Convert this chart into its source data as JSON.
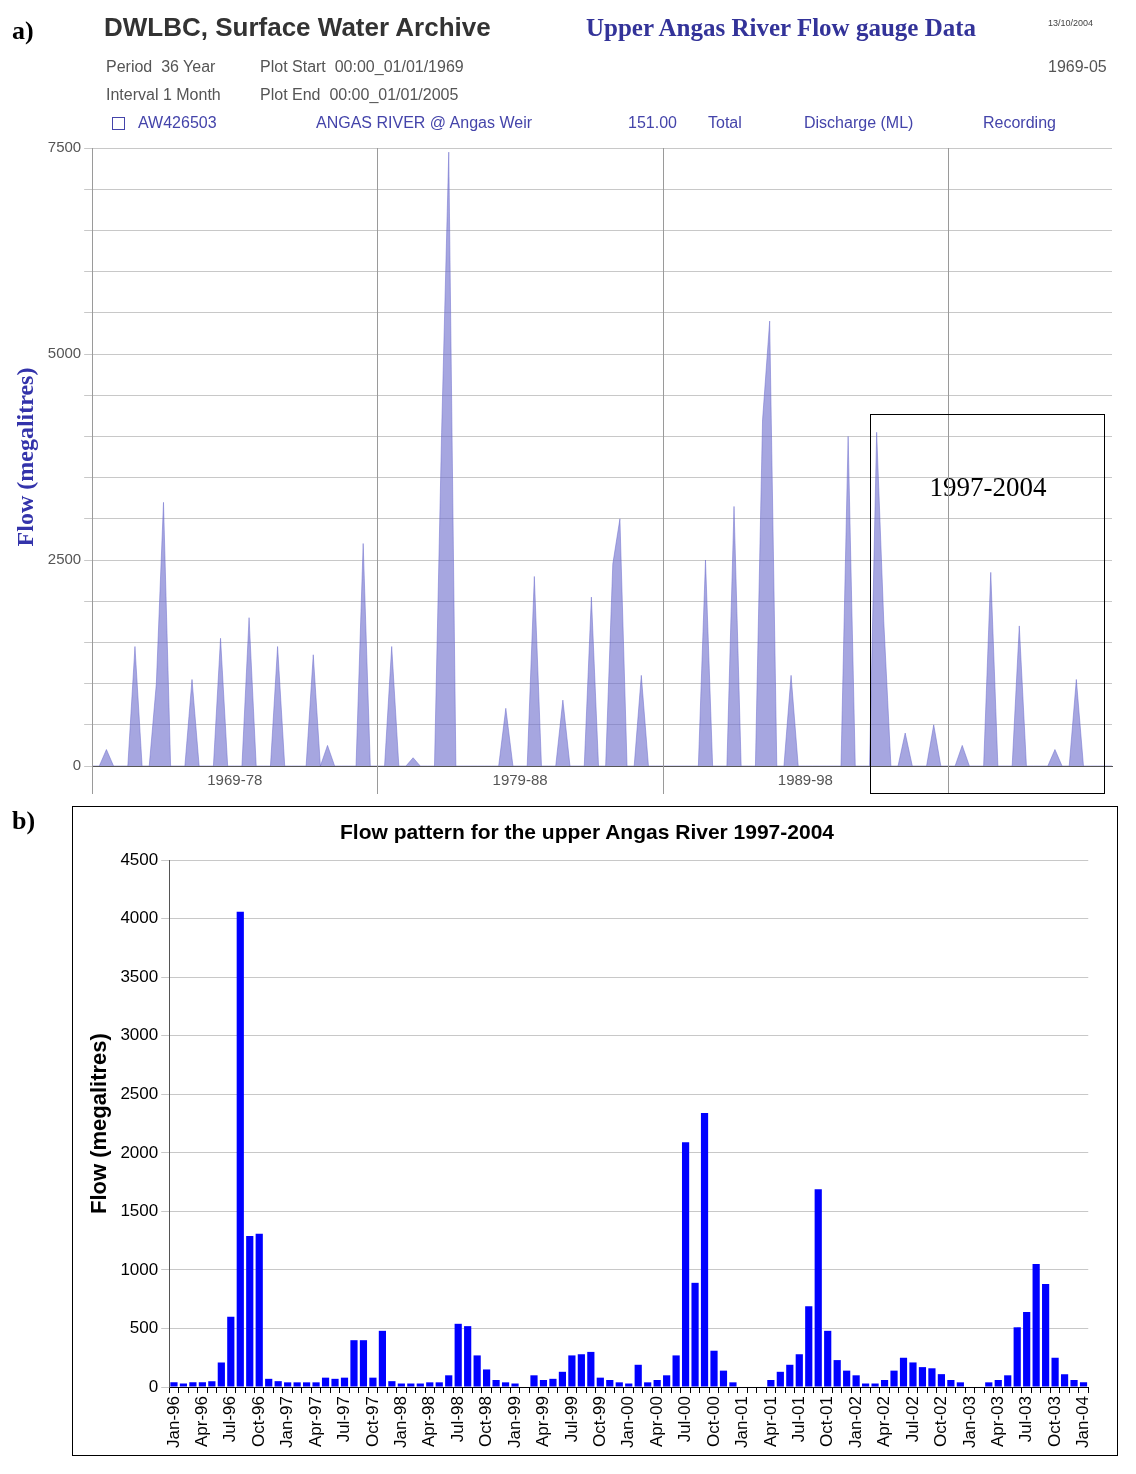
{
  "chart_data": [
    {
      "type": "area",
      "title": "DWLBC, Surface Water Archive",
      "subtitle": "Upper Angas River Flow gauge Data",
      "ylabel": "Flow (megalitres)",
      "annotations": [
        "a)",
        "13/10/2004",
        "Period  36 Year",
        "Plot Start  00:00_01/01/1969",
        "1969-05",
        "Interval 1 Month",
        "Plot End  00:00_01/01/2005",
        "AW426503",
        "ANGAS RIVER @ Angas Weir",
        "151.00",
        "Total",
        "Discharge (ML)",
        "Recording",
        "1997-2004"
      ],
      "categories": [
        null,
        null,
        null,
        null,
        null,
        null,
        null,
        null,
        null,
        null,
        null,
        null,
        null,
        null,
        null,
        null,
        null,
        null,
        null,
        null,
        "1969-78",
        null,
        null,
        null,
        null,
        null,
        null,
        null,
        null,
        null,
        null,
        null,
        null,
        null,
        null,
        null,
        null,
        null,
        null,
        null,
        null,
        null,
        null,
        null,
        null,
        null,
        null,
        null,
        null,
        null,
        null,
        null,
        null,
        null,
        null,
        null,
        null,
        null,
        null,
        null,
        "1979-88",
        null,
        null,
        null,
        null,
        null,
        null,
        null,
        null,
        null,
        null,
        null,
        null,
        null,
        null,
        null,
        null,
        null,
        null,
        null,
        null,
        null,
        null,
        null,
        null,
        null,
        null,
        null,
        null,
        null,
        null,
        null,
        null,
        null,
        null,
        null,
        null,
        null,
        null,
        null,
        "1989-98",
        null,
        null,
        null,
        null,
        null,
        null,
        null,
        null,
        null,
        null,
        null,
        null,
        null,
        null,
        null,
        null,
        null,
        null,
        null,
        null,
        null,
        null,
        null,
        null,
        null,
        null,
        null,
        null,
        null,
        null,
        null,
        null,
        null,
        null,
        null,
        null,
        null,
        null,
        null,
        null,
        null,
        null,
        null
      ],
      "series": [
        {
          "color": "#6a6acc",
          "values": [
            0,
            0,
            200,
            0,
            0,
            0,
            1450,
            0,
            0,
            1000,
            3200,
            0,
            0,
            0,
            1050,
            0,
            0,
            0,
            1550,
            0,
            0,
            0,
            1800,
            0,
            0,
            0,
            1450,
            0,
            0,
            0,
            0,
            1350,
            0,
            250,
            0,
            0,
            0,
            0,
            2700,
            0,
            0,
            0,
            1450,
            0,
            0,
            100,
            0,
            0,
            0,
            4050,
            7450,
            0,
            0,
            0,
            0,
            0,
            0,
            0,
            700,
            0,
            0,
            0,
            2300,
            0,
            0,
            0,
            800,
            0,
            0,
            0,
            2050,
            0,
            0,
            2450,
            3000,
            0,
            0,
            1100,
            0,
            0,
            0,
            0,
            0,
            0,
            0,
            0,
            2500,
            0,
            0,
            0,
            3150,
            0,
            0,
            0,
            4200,
            5400,
            0,
            0,
            1100,
            0,
            0,
            0,
            0,
            0,
            0,
            0,
            4000,
            0,
            0,
            0,
            4050,
            1750,
            0,
            0,
            400,
            0,
            0,
            0,
            500,
            0,
            0,
            0,
            250,
            0,
            0,
            0,
            2350,
            0,
            0,
            0,
            1700,
            0,
            0,
            0,
            0,
            200,
            0,
            0,
            1050,
            0,
            0,
            0,
            0,
            0
          ]
        }
      ],
      "ylim": [
        0,
        7500
      ],
      "yticks": [
        0,
        {
          "value": 500,
          "label": null
        },
        {
          "value": 1000,
          "label": null
        },
        {
          "value": 1500,
          "label": null
        },
        {
          "value": 2000,
          "label": null
        },
        2500,
        {
          "value": 3000,
          "label": null
        },
        {
          "value": 3500,
          "label": null
        },
        {
          "value": 4000,
          "label": null
        },
        {
          "value": 4500,
          "label": null
        },
        5000,
        {
          "value": 5500,
          "label": null
        },
        {
          "value": 6000,
          "label": null
        },
        {
          "value": 6500,
          "label": null
        },
        {
          "value": 7000,
          "label": null
        },
        7500
      ],
      "grid": true
    },
    {
      "type": "bar",
      "title": "Flow pattern for the upper Angas River 1997-2004",
      "ylabel": "Flow (megalitres)",
      "annotations": [
        "b)"
      ],
      "categories": [
        "Jan-96",
        null,
        null,
        "Apr-96",
        null,
        null,
        "Jul-96",
        null,
        null,
        "Oct-96",
        null,
        null,
        "Jan-97",
        null,
        null,
        "Apr-97",
        null,
        null,
        "Jul-97",
        null,
        null,
        "Oct-97",
        null,
        null,
        "Jan-98",
        null,
        null,
        "Apr-98",
        null,
        null,
        "Jul-98",
        null,
        null,
        "Oct-98",
        null,
        null,
        "Jan-99",
        null,
        null,
        "Apr-99",
        null,
        null,
        "Jul-99",
        null,
        null,
        "Oct-99",
        null,
        null,
        "Jan-00",
        null,
        null,
        "Apr-00",
        null,
        null,
        "Jul-00",
        null,
        null,
        "Oct-00",
        null,
        null,
        "Jan-01",
        null,
        null,
        "Apr-01",
        null,
        null,
        "Jul-01",
        null,
        null,
        "Oct-01",
        null,
        null,
        "Jan-02",
        null,
        null,
        "Apr-02",
        null,
        null,
        "Jul-02",
        null,
        null,
        "Oct-02",
        null,
        null,
        "Jan-03",
        null,
        null,
        "Apr-03",
        null,
        null,
        "Jul-03",
        null,
        null,
        "Oct-03",
        null,
        null,
        "Jan-04"
      ],
      "series": [
        {
          "color": "#0000ff",
          "values": [
            40,
            30,
            40,
            40,
            50,
            210,
            600,
            4060,
            1290,
            1310,
            70,
            50,
            40,
            40,
            40,
            40,
            80,
            70,
            80,
            400,
            400,
            80,
            480,
            50,
            30,
            30,
            30,
            40,
            40,
            100,
            540,
            520,
            270,
            150,
            60,
            40,
            30,
            0,
            100,
            60,
            70,
            130,
            270,
            280,
            300,
            80,
            60,
            40,
            30,
            190,
            40,
            60,
            100,
            270,
            2090,
            890,
            2340,
            310,
            140,
            40,
            0,
            0,
            0,
            60,
            130,
            190,
            280,
            690,
            1690,
            480,
            230,
            140,
            100,
            30,
            30,
            60,
            140,
            250,
            210,
            170,
            160,
            110,
            60,
            40,
            0,
            0,
            40,
            60,
            100,
            510,
            640,
            1050,
            880,
            250,
            110,
            60,
            40
          ]
        }
      ],
      "ylim": [
        0,
        4500
      ],
      "yticks": [
        0,
        500,
        1000,
        1500,
        2000,
        2500,
        3000,
        3500,
        4000,
        4500
      ],
      "grid": "y"
    }
  ]
}
